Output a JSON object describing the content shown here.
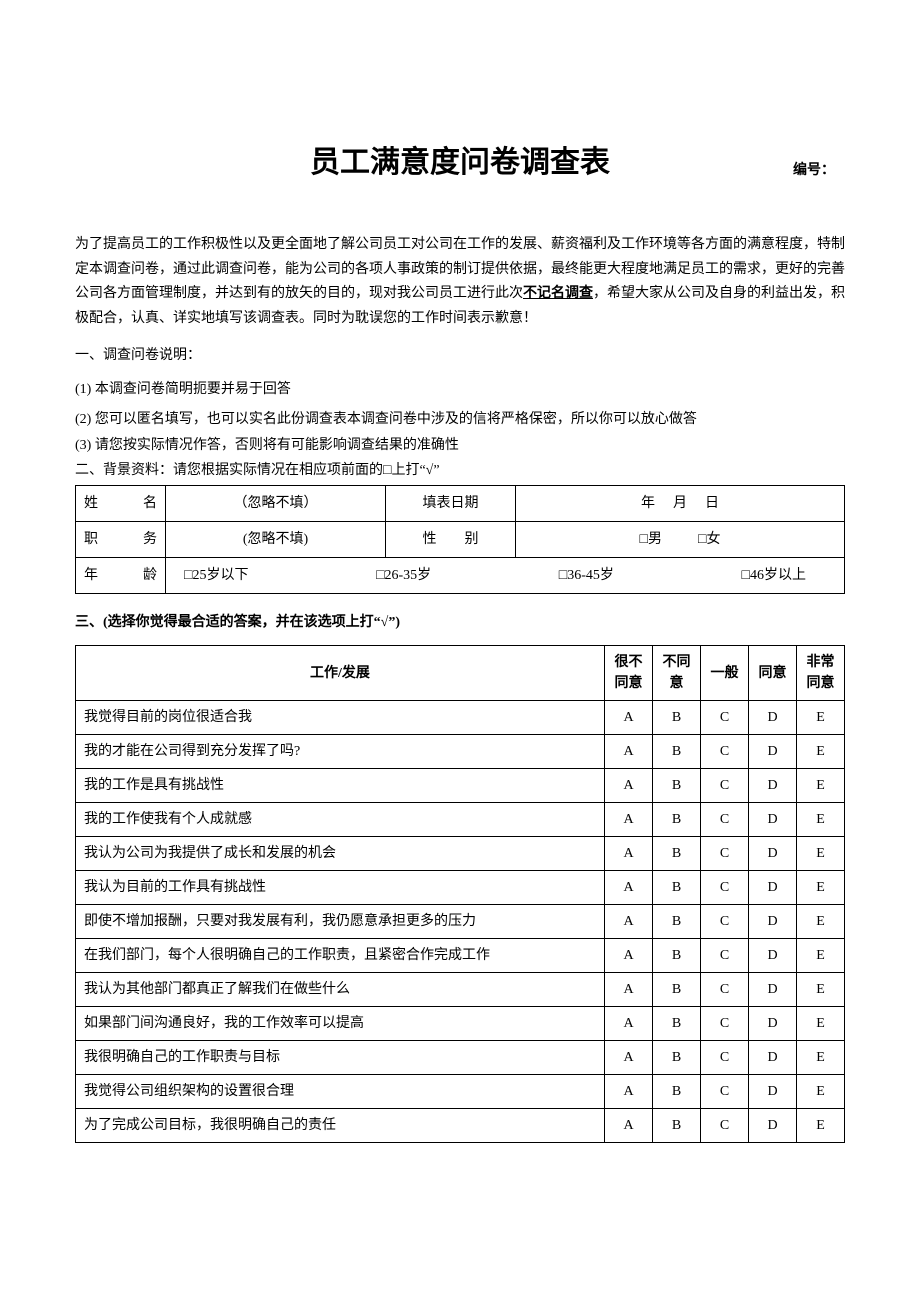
{
  "title": "员工满意度问卷调查表",
  "serial_label": "编号：",
  "intro_pre": "为了提高员工的工作积极性以及更全面地了解公司员工对公司在工作的发展、薪资福利及工作环境等各方面的满意程度，特制定本调查问卷，通过此调查问卷，能为公司的各项人事政策的制订提供依据，最终能更大程度地满足员工的需求，更好的完善公司各方面管理制度，并达到有的放矢的目的，现对我公司员工进行此次",
  "intro_underlined": "不记名调查",
  "intro_post": "，希望大家从公司及自身的利益出发，积极配合，认真、详实地填写该调查表。同时为耽误您的工作时间表示歉意！",
  "section1_heading": "一、调查问卷说明：",
  "notes": {
    "n1": "(1) 本调查问卷简明扼要并易于回答",
    "n2": "(2) 您可以匿名填写，也可以实名此份调查表本调查问卷中涉及的信将严格保密，所以你可以放心做答",
    "n3": "(3) 请您按实际情况作答，否则将有可能影响调查结果的准确性"
  },
  "section2_heading": "二、背景资料：请您根据实际情况在相应项前面的□上打“√”",
  "bg": {
    "name_label": "姓　　名",
    "name_value": "（忽略不填）",
    "date_label": "填表日期",
    "date_y": "年",
    "date_m": "月",
    "date_d": "日",
    "position_label": "职　　务",
    "position_value": "(忽略不填)",
    "gender_label": "性　　别",
    "gender_m": "□男",
    "gender_f": "□女",
    "age_label": "年　　龄",
    "age_opts": [
      "□25岁以下",
      "□26-35岁",
      "□36-45岁",
      "□46岁以上"
    ]
  },
  "section3_heading": "三、(选择你觉得最合适的答案，并在该选项上打“√”)",
  "survey": {
    "header_topic": "工作/发展",
    "options": [
      "很不同意",
      "不同意",
      "一般",
      "同意",
      "非常同意"
    ],
    "choices": [
      "A",
      "B",
      "C",
      "D",
      "E"
    ],
    "questions": [
      "我觉得目前的岗位很适合我",
      "我的才能在公司得到充分发挥了吗?",
      "我的工作是具有挑战性",
      "我的工作使我有个人成就感",
      "我认为公司为我提供了成长和发展的机会",
      "我认为目前的工作具有挑战性",
      "即使不增加报酬，只要对我发展有利，我仍愿意承担更多的压力",
      "在我们部门，每个人很明确自己的工作职责，且紧密合作完成工作",
      "我认为其他部门都真正了解我们在做些什么",
      "如果部门间沟通良好，我的工作效率可以提高",
      "我很明确自己的工作职责与目标",
      "我觉得公司组织架构的设置很合理",
      "为了完成公司目标，我很明确自己的责任"
    ]
  },
  "colors": {
    "border": "#000000",
    "bg": "#ffffff",
    "text": "#000000"
  }
}
